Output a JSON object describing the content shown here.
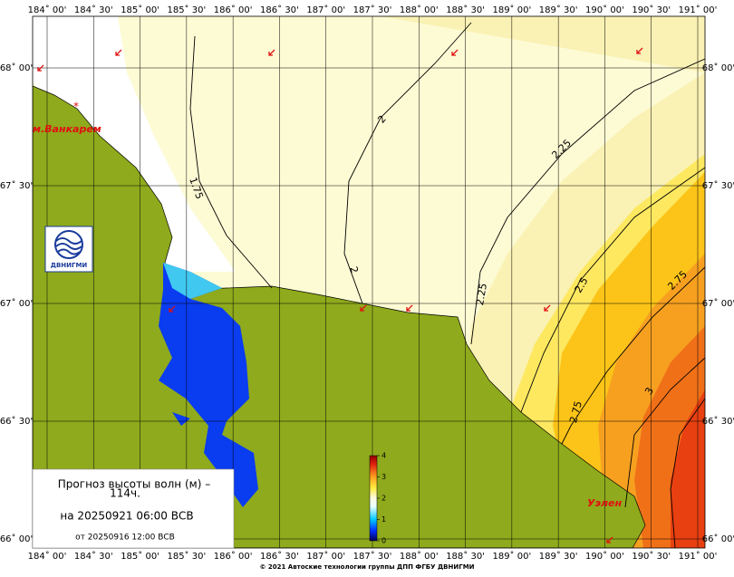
{
  "lon_labels": [
    "184˚ 00'",
    "184˚ 30'",
    "185˚ 00'",
    "185˚ 30'",
    "186˚ 00'",
    "186˚ 30'",
    "187˚ 00'",
    "187˚ 30'",
    "188˚ 00'",
    "188˚ 30'",
    "189˚ 00'",
    "189˚ 30'",
    "190˚ 00'",
    "190˚ 30'",
    "191˚ 00'"
  ],
  "lat_labels": [
    "68˚ 00'",
    "67˚ 30'",
    "67˚ 00'",
    "66˚ 30'",
    "66˚ 00'"
  ],
  "places": [
    "м.Ванкарем",
    "Уэлен"
  ],
  "contour_labels": [
    "1.75",
    "2",
    "2",
    "2.25",
    "2.25",
    "2.5",
    "2.75",
    "2.75",
    "3"
  ],
  "logo": "ДВНИГМИ",
  "legend": {
    "title": "Прогноз высоты волн (м) –",
    "lead": "114ч.",
    "valid": "на 20250921 06:00 ВСВ",
    "issued": "от 20250916 12:00 ВСВ"
  },
  "colorbar": {
    "ticks": [
      0,
      1,
      2,
      3,
      4
    ]
  },
  "copyright": "© 2021 Автоские технологии группы ДПП ФГБУ ДВНИГМИ"
}
